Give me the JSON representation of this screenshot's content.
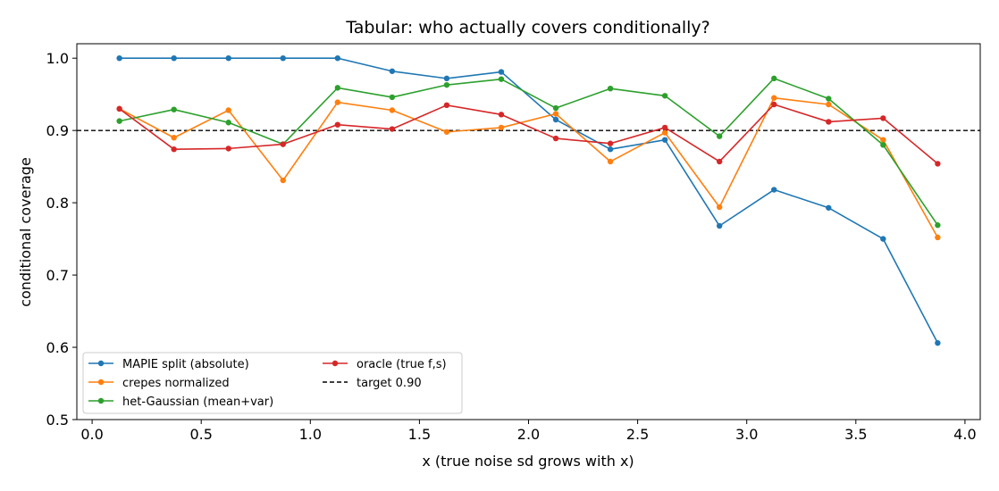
{
  "chart_data": {
    "type": "line",
    "title": "Tabular: who actually covers conditionally?",
    "xlabel": "x  (true noise sd grows with x)",
    "ylabel": "conditional coverage",
    "xlim": [
      -0.07,
      4.07
    ],
    "ylim": [
      0.5,
      1.02
    ],
    "xticks": [
      0.0,
      0.5,
      1.0,
      1.5,
      2.0,
      2.5,
      3.0,
      3.5,
      4.0
    ],
    "xtick_labels": [
      "0.0",
      "0.5",
      "1.0",
      "1.5",
      "2.0",
      "2.5",
      "3.0",
      "3.5",
      "4.0"
    ],
    "yticks": [
      0.5,
      0.6,
      0.7,
      0.8,
      0.9,
      1.0
    ],
    "ytick_labels": [
      "0.5",
      "0.6",
      "0.7",
      "0.8",
      "0.9",
      "1.0"
    ],
    "grid": false,
    "legend_position": "lower-left",
    "x": [
      0.125,
      0.375,
      0.625,
      0.875,
      1.125,
      1.375,
      1.625,
      1.875,
      2.125,
      2.375,
      2.625,
      2.875,
      3.125,
      3.375,
      3.625,
      3.875
    ],
    "series": [
      {
        "name": "MAPIE split (absolute)",
        "color": "#1f77b4",
        "values": [
          1.0,
          1.0,
          1.0,
          1.0,
          1.0,
          0.982,
          0.972,
          0.981,
          0.915,
          0.874,
          0.887,
          0.768,
          0.818,
          0.793,
          0.75,
          0.606
        ]
      },
      {
        "name": "crepes normalized",
        "color": "#ff7f0e",
        "values": [
          0.93,
          0.89,
          0.928,
          0.831,
          0.939,
          0.928,
          0.898,
          0.904,
          0.923,
          0.857,
          0.897,
          0.794,
          0.945,
          0.936,
          0.887,
          0.752
        ]
      },
      {
        "name": "het-Gaussian (mean+var)",
        "color": "#2ca02c",
        "values": [
          0.913,
          0.929,
          0.911,
          0.881,
          0.959,
          0.946,
          0.963,
          0.971,
          0.931,
          0.958,
          0.948,
          0.892,
          0.972,
          0.944,
          0.88,
          0.769
        ]
      },
      {
        "name": "oracle (true f,s)",
        "color": "#d62728",
        "values": [
          0.93,
          0.874,
          0.875,
          0.881,
          0.908,
          0.902,
          0.935,
          0.922,
          0.889,
          0.882,
          0.904,
          0.857,
          0.936,
          0.912,
          0.917,
          0.854
        ]
      }
    ],
    "reference_line": {
      "name": "target 0.90",
      "y": 0.9,
      "color": "#000000",
      "style": "dashed"
    }
  }
}
